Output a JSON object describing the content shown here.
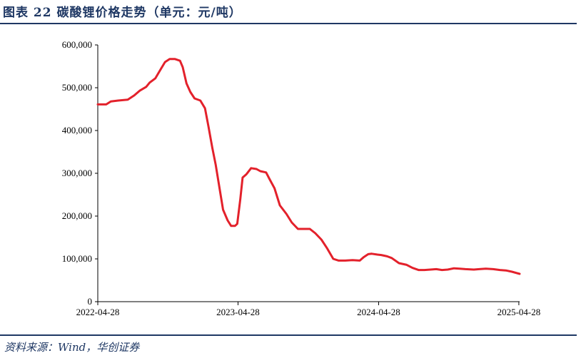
{
  "figure": {
    "title": "图表 22   碳酸锂价格走势（单元：元/吨）",
    "source": "资料来源：Wind，华创证券"
  },
  "chart_data": {
    "type": "line",
    "title": "",
    "xlabel": "",
    "ylabel": "",
    "ylim": [
      0,
      600000
    ],
    "xlim": [
      "2022-04-28",
      "2025-04-30"
    ],
    "y_ticks": [
      0,
      100000,
      200000,
      300000,
      400000,
      500000,
      600000
    ],
    "y_tick_labels": [
      "0",
      "100,000",
      "200,000",
      "300,000",
      "400,000",
      "500,000",
      "600,000"
    ],
    "x_ticks": [
      "2022-04-28",
      "2023-04-28",
      "2024-04-28",
      "2025-04-28"
    ],
    "x_tick_labels": [
      "2022-04-28",
      "2023-04-28",
      "2024-04-28",
      "2025-04-28"
    ],
    "grid": false,
    "legend": "none",
    "series": [
      {
        "color": "#e3212b",
        "points": [
          [
            "2022-04-28",
            461000
          ],
          [
            "2022-05-20",
            461000
          ],
          [
            "2022-06-01",
            468000
          ],
          [
            "2022-06-20",
            470000
          ],
          [
            "2022-07-15",
            472000
          ],
          [
            "2022-08-01",
            482000
          ],
          [
            "2022-08-15",
            493000
          ],
          [
            "2022-09-01",
            502000
          ],
          [
            "2022-09-10",
            512000
          ],
          [
            "2022-09-25",
            522000
          ],
          [
            "2022-10-10",
            545000
          ],
          [
            "2022-10-20",
            560000
          ],
          [
            "2022-11-01",
            567000
          ],
          [
            "2022-11-15",
            567000
          ],
          [
            "2022-11-28",
            563000
          ],
          [
            "2022-12-05",
            548000
          ],
          [
            "2022-12-15",
            510000
          ],
          [
            "2022-12-25",
            490000
          ],
          [
            "2023-01-05",
            475000
          ],
          [
            "2023-01-20",
            470000
          ],
          [
            "2023-02-01",
            452000
          ],
          [
            "2023-02-10",
            410000
          ],
          [
            "2023-02-20",
            360000
          ],
          [
            "2023-03-01",
            320000
          ],
          [
            "2023-03-10",
            270000
          ],
          [
            "2023-03-20",
            215000
          ],
          [
            "2023-04-01",
            190000
          ],
          [
            "2023-04-10",
            177000
          ],
          [
            "2023-04-20",
            177000
          ],
          [
            "2023-04-26",
            182000
          ],
          [
            "2023-05-04",
            240000
          ],
          [
            "2023-05-10",
            290000
          ],
          [
            "2023-05-20",
            298000
          ],
          [
            "2023-06-01",
            312000
          ],
          [
            "2023-06-15",
            310000
          ],
          [
            "2023-06-25",
            305000
          ],
          [
            "2023-07-10",
            302000
          ],
          [
            "2023-07-20",
            285000
          ],
          [
            "2023-08-01",
            265000
          ],
          [
            "2023-08-15",
            225000
          ],
          [
            "2023-09-01",
            205000
          ],
          [
            "2023-09-15",
            185000
          ],
          [
            "2023-10-01",
            170000
          ],
          [
            "2023-10-20",
            170000
          ],
          [
            "2023-11-01",
            170000
          ],
          [
            "2023-11-15",
            160000
          ],
          [
            "2023-12-01",
            145000
          ],
          [
            "2023-12-15",
            126000
          ],
          [
            "2024-01-01",
            100000
          ],
          [
            "2024-01-15",
            96000
          ],
          [
            "2024-02-01",
            96000
          ],
          [
            "2024-02-20",
            97000
          ],
          [
            "2024-03-10",
            96000
          ],
          [
            "2024-03-20",
            104000
          ],
          [
            "2024-04-01",
            111000
          ],
          [
            "2024-04-10",
            112000
          ],
          [
            "2024-04-25",
            110000
          ],
          [
            "2024-05-05",
            109000
          ],
          [
            "2024-05-20",
            106000
          ],
          [
            "2024-06-01",
            102000
          ],
          [
            "2024-06-20",
            90000
          ],
          [
            "2024-07-10",
            86000
          ],
          [
            "2024-07-25",
            79000
          ],
          [
            "2024-08-10",
            74000
          ],
          [
            "2024-08-25",
            74000
          ],
          [
            "2024-09-10",
            75000
          ],
          [
            "2024-09-25",
            76000
          ],
          [
            "2024-10-10",
            74000
          ],
          [
            "2024-10-25",
            75000
          ],
          [
            "2024-11-10",
            78000
          ],
          [
            "2024-11-25",
            77000
          ],
          [
            "2024-12-10",
            76000
          ],
          [
            "2025-01-01",
            75000
          ],
          [
            "2025-01-15",
            76000
          ],
          [
            "2025-02-01",
            77000
          ],
          [
            "2025-02-20",
            76000
          ],
          [
            "2025-03-10",
            74000
          ],
          [
            "2025-03-25",
            73000
          ],
          [
            "2025-04-10",
            70000
          ],
          [
            "2025-04-30",
            65000
          ]
        ]
      }
    ]
  }
}
